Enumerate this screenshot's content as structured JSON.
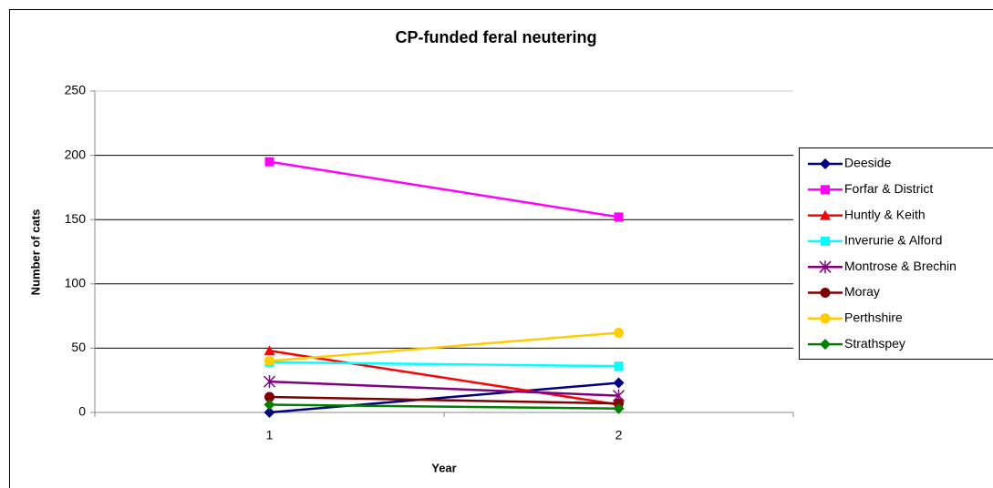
{
  "chart_data": {
    "type": "line",
    "title": "CP-funded feral neutering",
    "x_label": "Year",
    "y_label": "Number of cats",
    "categories": [
      "1",
      "2"
    ],
    "ylim": [
      0,
      250
    ],
    "yticks": [
      0,
      50,
      100,
      150,
      200,
      250
    ],
    "grid": true,
    "legend": "right",
    "series": [
      {
        "name": "Deeside",
        "color": "#000080",
        "marker": "diamond",
        "values": [
          0,
          23
        ]
      },
      {
        "name": "Forfar & District",
        "color": "#ff00ff",
        "marker": "square",
        "values": [
          195,
          152
        ]
      },
      {
        "name": "Huntly & Keith",
        "color": "#ff0000",
        "marker": "triangle",
        "values": [
          48,
          6
        ]
      },
      {
        "name": "Inverurie & Alford",
        "color": "#00ffff",
        "marker": "square",
        "values": [
          39,
          36
        ]
      },
      {
        "name": "Montrose & Brechin",
        "color": "#800080",
        "marker": "star",
        "values": [
          24,
          13
        ]
      },
      {
        "name": "Moray",
        "color": "#800000",
        "marker": "circle",
        "values": [
          12,
          7
        ]
      },
      {
        "name": "Perthshire",
        "color": "#ffcc00",
        "marker": "circle",
        "values": [
          40,
          62
        ]
      },
      {
        "name": "Strathspey",
        "color": "#008000",
        "marker": "diamond",
        "values": [
          6,
          3
        ]
      }
    ]
  }
}
